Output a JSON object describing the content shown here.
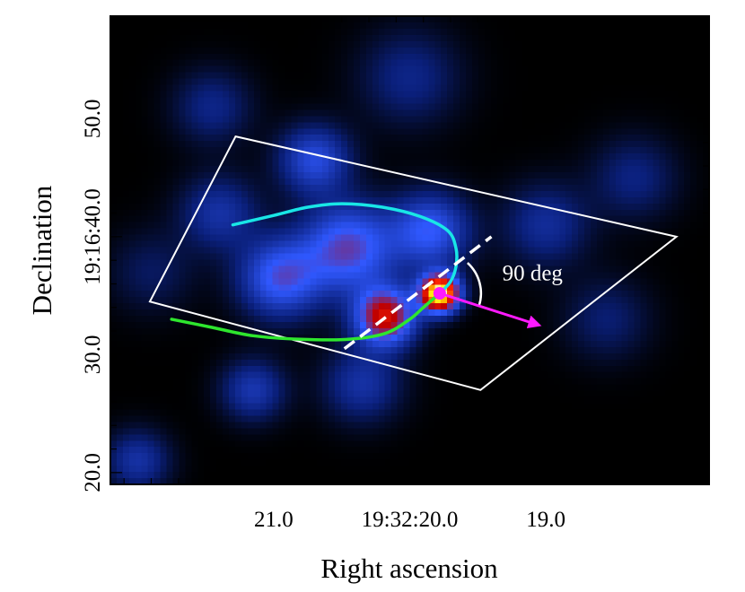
{
  "chart_data": {
    "type": "heatmap",
    "description_units": "equatorial sky image, RA in seconds of 19:32, Dec in arcsec of 19:16",
    "xlabel": "Right ascension",
    "ylabel": "Declination",
    "x_ticks": [
      {
        "value": 21.0,
        "label": "21.0"
      },
      {
        "value": 20.0,
        "label": "19:32:20.0"
      },
      {
        "value": 19.0,
        "label": "19.0"
      }
    ],
    "y_ticks": [
      {
        "value": 20.0,
        "label": "20.0"
      },
      {
        "value": 30.0,
        "label": "30.0"
      },
      {
        "value": 40.0,
        "label": "19:16:40.0"
      },
      {
        "value": 50.0,
        "label": "50.0"
      }
    ],
    "xlim": [
      22.2,
      17.8
    ],
    "ylim": [
      19.0,
      58.7
    ],
    "colormap": [
      "#000000",
      "#0a1f7a",
      "#2f58ff",
      "#c00000",
      "#ff2800",
      "#ffe600",
      "#ffffff"
    ],
    "emission_blobs": [
      {
        "ra": 19.78,
        "dec": 35.2,
        "intensity": 1.0,
        "spread": 1.1
      },
      {
        "ra": 20.18,
        "dec": 33.2,
        "intensity": 0.62,
        "spread": 1.7
      },
      {
        "ra": 20.45,
        "dec": 39.0,
        "intensity": 0.42,
        "spread": 2.6
      },
      {
        "ra": 20.95,
        "dec": 36.5,
        "intensity": 0.38,
        "spread": 2.3
      },
      {
        "ra": 19.85,
        "dec": 40.5,
        "intensity": 0.35,
        "spread": 2.2
      },
      {
        "ra": 20.7,
        "dec": 46.5,
        "intensity": 0.3,
        "spread": 2.0
      },
      {
        "ra": 21.4,
        "dec": 42.0,
        "intensity": 0.2,
        "spread": 2.2
      },
      {
        "ra": 21.15,
        "dec": 27.0,
        "intensity": 0.22,
        "spread": 1.8
      },
      {
        "ra": 20.35,
        "dec": 27.5,
        "intensity": 0.2,
        "spread": 2.2
      },
      {
        "ra": 19.0,
        "dec": 41.0,
        "intensity": 0.18,
        "spread": 2.4
      },
      {
        "ra": 21.45,
        "dec": 51.0,
        "intensity": 0.15,
        "spread": 2.2
      },
      {
        "ra": 20.0,
        "dec": 53.5,
        "intensity": 0.15,
        "spread": 2.8
      },
      {
        "ra": 18.35,
        "dec": 45.0,
        "intensity": 0.14,
        "spread": 2.4
      },
      {
        "ra": 22.0,
        "dec": 21.0,
        "intensity": 0.2,
        "spread": 1.8
      },
      {
        "ra": 18.55,
        "dec": 33.0,
        "intensity": 0.12,
        "spread": 2.4
      },
      {
        "ra": 21.9,
        "dec": 37.0,
        "intensity": 0.1,
        "spread": 2.4
      }
    ],
    "region_polygon": [
      {
        "ra": 21.28,
        "dec": 48.5
      },
      {
        "ra": 18.04,
        "dec": 40.0
      },
      {
        "ra": 19.48,
        "dec": 27.0
      },
      {
        "ra": 21.91,
        "dec": 34.5
      }
    ],
    "cyan_arc": [
      {
        "ra": 21.3,
        "dec": 41.0
      },
      {
        "ra": 21.0,
        "dec": 41.8
      },
      {
        "ra": 20.75,
        "dec": 42.5
      },
      {
        "ra": 20.5,
        "dec": 42.8
      },
      {
        "ra": 20.2,
        "dec": 42.5
      },
      {
        "ra": 19.92,
        "dec": 41.7
      },
      {
        "ra": 19.72,
        "dec": 40.5
      },
      {
        "ra": 19.66,
        "dec": 39.0
      },
      {
        "ra": 19.66,
        "dec": 37.5
      },
      {
        "ra": 19.7,
        "dec": 36.2
      },
      {
        "ra": 19.78,
        "dec": 35.2
      }
    ],
    "green_arc": [
      {
        "ra": 21.75,
        "dec": 33.0
      },
      {
        "ra": 21.45,
        "dec": 32.3
      },
      {
        "ra": 21.15,
        "dec": 31.6
      },
      {
        "ra": 20.8,
        "dec": 31.3
      },
      {
        "ra": 20.45,
        "dec": 31.3
      },
      {
        "ra": 20.18,
        "dec": 31.8
      },
      {
        "ra": 20.0,
        "dec": 33.0
      },
      {
        "ra": 19.9,
        "dec": 34.0
      },
      {
        "ra": 19.78,
        "dec": 35.2
      }
    ],
    "axis_line": {
      "from": {
        "ra": 20.48,
        "dec": 30.5
      },
      "to": {
        "ra": 19.4,
        "dec": 40.0
      }
    },
    "source": {
      "ra": 19.78,
      "dec": 35.2
    },
    "motion_vector": {
      "from": {
        "ra": 19.78,
        "dec": 35.2
      },
      "to": {
        "ra": 19.05,
        "dec": 32.5
      }
    },
    "colors": {
      "region": "#ffffff",
      "cyan_arc": "#19e6e6",
      "green_arc": "#2ee62e",
      "axis_line": "#ffffff",
      "source": "#ff1aff",
      "motion_vector": "#ff1aff",
      "angle_arc": "#ffffff",
      "frame": "#000000"
    },
    "annotations": [
      {
        "text": "90 deg",
        "ra": 19.32,
        "dec": 36.3
      }
    ]
  }
}
